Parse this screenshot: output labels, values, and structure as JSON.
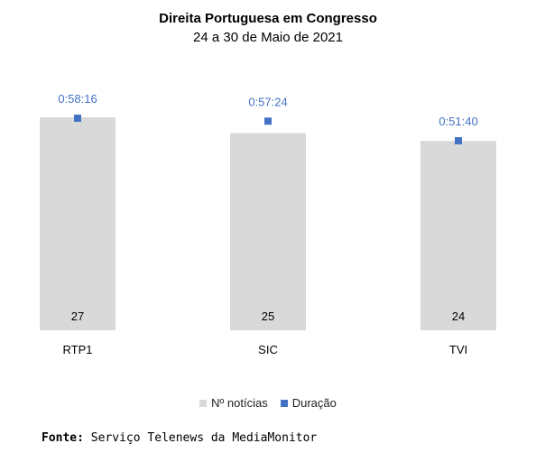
{
  "chart_data": {
    "type": "bar",
    "title": "Direita Portuguesa em Congresso",
    "subtitle": "24 a 30 de Maio de 2021",
    "categories": [
      "RTP1",
      "SIC",
      "TVI"
    ],
    "series": [
      {
        "name": "Nº notícias",
        "type": "bar",
        "values": [
          27,
          25,
          24
        ],
        "color": "#d9d9d9"
      },
      {
        "name": "Duração",
        "type": "scatter",
        "values": [
          "0:58:16",
          "0:57:24",
          "0:51:40"
        ],
        "seconds": [
          3496,
          3444,
          3100
        ],
        "color": "#4472c4"
      }
    ],
    "grid": false,
    "legend_position": "bottom"
  },
  "footer": {
    "source_label": "Fonte:",
    "source_text": "Serviço Telenews da MediaMonitor"
  }
}
